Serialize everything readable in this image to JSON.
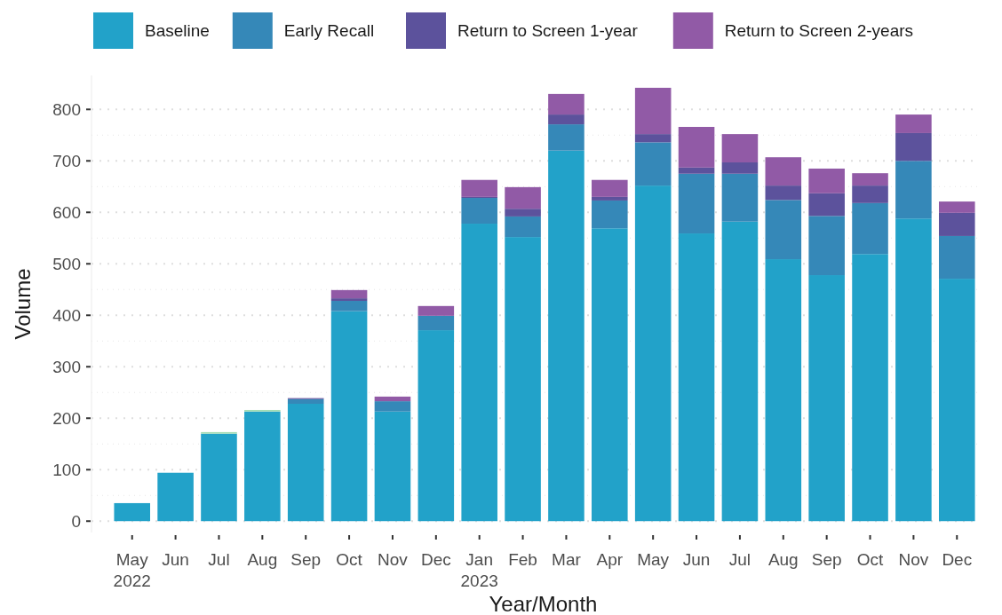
{
  "chart_data": {
    "type": "bar",
    "stacked": true,
    "xlabel": "Year/Month",
    "ylabel": "Volume",
    "categories": [
      "May 2022",
      "Jun",
      "Jul",
      "Aug",
      "Sep",
      "Oct",
      "Nov",
      "Dec",
      "Jan 2023",
      "Feb",
      "Mar",
      "Apr",
      "May",
      "Jun",
      "Jul",
      "Aug",
      "Sep",
      "Oct",
      "Nov",
      "Dec"
    ],
    "series": [
      {
        "name": "Baseline",
        "color": "#22a2c9",
        "values": [
          35,
          94,
          170,
          213,
          228,
          408,
          213,
          371,
          578,
          552,
          720,
          569,
          652,
          559,
          582,
          509,
          478,
          519,
          588,
          471
        ]
      },
      {
        "name": "Early Recall",
        "color": "#3588b8",
        "values": [
          0,
          0,
          0,
          0,
          9,
          20,
          20,
          28,
          50,
          40,
          51,
          54,
          84,
          116,
          93,
          115,
          115,
          99,
          112,
          83
        ]
      },
      {
        "name": "Return to Screen 1-year",
        "color": "#5c529c",
        "values": [
          0,
          0,
          0,
          0,
          2,
          5,
          0,
          0,
          2,
          15,
          19,
          7,
          16,
          12,
          22,
          28,
          44,
          34,
          54,
          45
        ]
      },
      {
        "name": "Return to Screen 2-years",
        "color": "#915aa6",
        "values": [
          0,
          0,
          0,
          0,
          0,
          16,
          9,
          19,
          33,
          42,
          40,
          33,
          90,
          79,
          55,
          55,
          48,
          24,
          36,
          22
        ]
      },
      {
        "color": "#a3dcb4",
        "values": [
          0,
          0,
          3,
          3,
          0,
          0,
          0,
          0,
          0,
          0,
          0,
          0,
          0,
          0,
          0,
          0,
          0,
          0,
          0,
          0
        ]
      }
    ],
    "ylim": [
      -22,
      866
    ],
    "yticks": [
      0,
      100,
      200,
      300,
      400,
      500,
      600,
      700,
      800
    ],
    "grid": "y",
    "legend": "top"
  }
}
